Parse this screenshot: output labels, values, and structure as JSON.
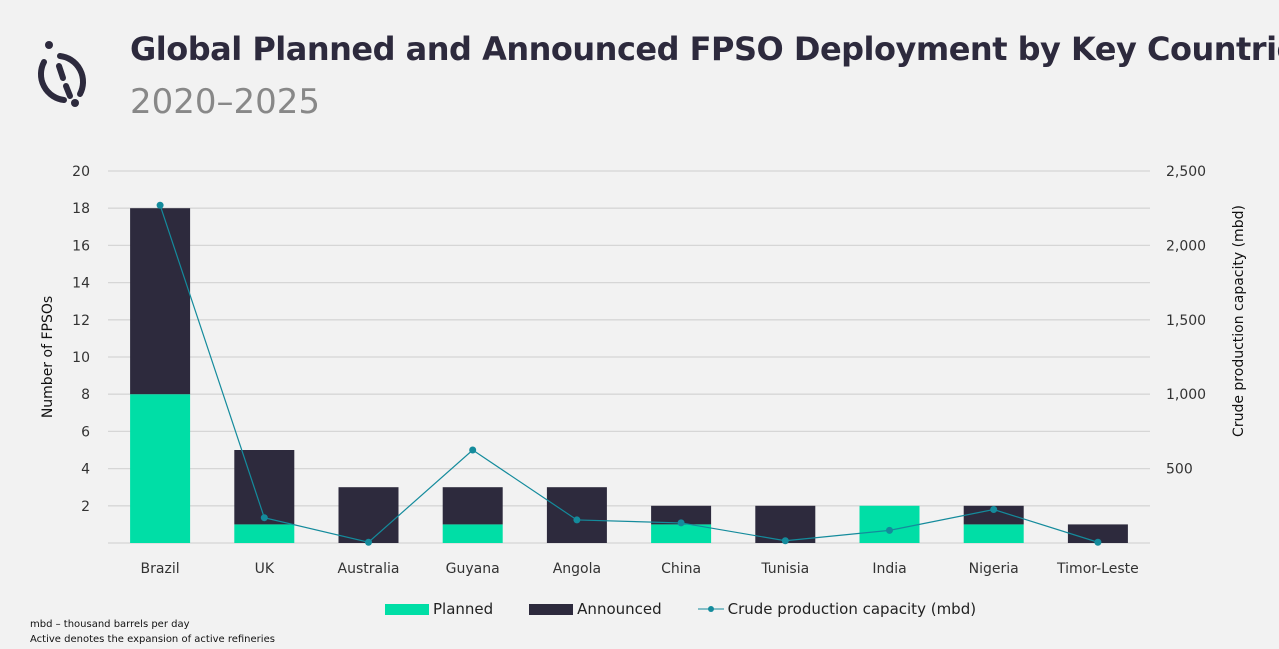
{
  "title": "Global Planned and Announced FPSO Deployment by Key Countries",
  "subtitle": "2020–2025",
  "notes": [
    "mbd – thousand barrels per day",
    "Active denotes  the  expansion of active refineries"
  ],
  "colors": {
    "planned": "#00dea6",
    "announced": "#2d2a3d",
    "line": "#148b9c"
  },
  "chart_data": {
    "type": "bar",
    "stacked": true,
    "categories": [
      "Brazil",
      "UK",
      "Australia",
      "Guyana",
      "Angola",
      "China",
      "Tunisia",
      "India",
      "Nigeria",
      "Timor-Leste"
    ],
    "series": [
      {
        "name": "Planned",
        "type": "bar",
        "axis": "left",
        "values": [
          8,
          1,
          0,
          1,
          0,
          1,
          0,
          2,
          1,
          0
        ]
      },
      {
        "name": "Announced",
        "type": "bar",
        "axis": "left",
        "values": [
          10,
          4,
          3,
          2,
          3,
          1,
          2,
          0,
          1,
          1
        ]
      },
      {
        "name": "Crude production capacity (mbd)",
        "type": "line",
        "axis": "right",
        "values": [
          2270,
          170,
          5,
          625,
          155,
          135,
          15,
          85,
          225,
          5
        ]
      }
    ],
    "ylabel": "Number of FPSOs",
    "ylim": [
      0,
      20
    ],
    "yticks": [
      "2",
      "4",
      "6",
      "8",
      "10",
      "12",
      "14",
      "16",
      "18",
      "20"
    ],
    "y2label": "Crude production capacity (mbd)",
    "y2lim": [
      0,
      2500
    ],
    "y2ticks": [
      "500",
      "1,000",
      "1,500",
      "2,000",
      "2,500"
    ],
    "grid": true,
    "legend": "bottom"
  }
}
